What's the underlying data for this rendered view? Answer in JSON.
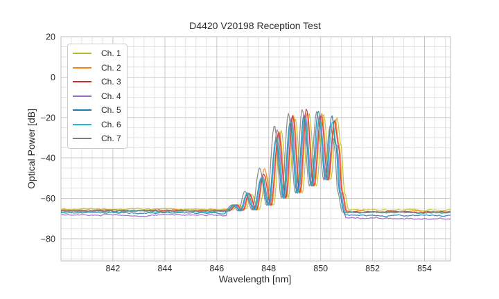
{
  "chart_data": {
    "type": "line",
    "title": "D4420 V20198 Reception Test",
    "xlabel": "Wavelength [nm]",
    "ylabel": "Optical Power [dB]",
    "xlim": [
      840,
      855
    ],
    "ylim": [
      -91,
      20
    ],
    "x_ticks": [
      842,
      844,
      846,
      848,
      850,
      852,
      854
    ],
    "y_ticks": [
      20,
      0,
      -20,
      -40,
      -60,
      -80
    ],
    "x_minor_step_nm": 0.4,
    "y_minor_step_db": 5,
    "grid": "both",
    "legend_position": "upper-left",
    "colors": {
      "background": "#ffffff",
      "grid_major": "#c3c3c3",
      "grid_minor": "#dddddd",
      "frame": "#bdbdbd",
      "text": "#2b2b2b"
    },
    "envelope_points": [
      [
        846.42,
        -66.5,
        null
      ],
      [
        846.74,
        -63.2,
        null
      ],
      [
        846.97,
        -66.3,
        null
      ],
      [
        847.22,
        -58.0,
        0
      ],
      [
        847.5,
        -65.8,
        null
      ],
      [
        847.79,
        -47.5,
        1
      ],
      [
        848.06,
        -63.5,
        null
      ],
      [
        848.36,
        -25.5,
        2
      ],
      [
        848.63,
        -60.0,
        null
      ],
      [
        848.9,
        -19.5,
        3
      ],
      [
        849.17,
        -57.5,
        null
      ],
      [
        849.43,
        -16.5,
        4
      ],
      [
        849.71,
        -54.0,
        null
      ],
      [
        849.99,
        -17.5,
        5
      ],
      [
        850.26,
        -51.0,
        null
      ],
      [
        850.51,
        -20.5,
        6
      ],
      [
        850.67,
        -34.0,
        null
      ],
      [
        850.8,
        -57.0,
        null
      ],
      [
        850.97,
        -66.5,
        null
      ]
    ],
    "series": [
      {
        "name": "Ch. 1",
        "color": "#bcbd22",
        "shift_nm": 0.12,
        "floor_left_db": -65.4,
        "floor_right_db": -65.7,
        "lobe_deltas": [
          0,
          -1.5,
          -1,
          -1,
          -1.5,
          -1,
          0.5
        ]
      },
      {
        "name": "Ch. 2",
        "color": "#ff7f0e",
        "shift_nm": 0.05,
        "floor_left_db": -66.1,
        "floor_right_db": -66.5,
        "lobe_deltas": [
          0,
          2.2,
          -1.5,
          0.5,
          -1.5,
          -0.5,
          -0.5
        ]
      },
      {
        "name": "Ch. 3",
        "color": "#d62728",
        "shift_nm": 0.02,
        "floor_left_db": -66.0,
        "floor_right_db": -66.7,
        "lobe_deltas": [
          0.5,
          -0.5,
          -2,
          0.5,
          0.8,
          -1.5,
          -1
        ]
      },
      {
        "name": "Ch. 4",
        "color": "#9467bd",
        "shift_nm": -0.03,
        "floor_left_db": -68.3,
        "floor_right_db": -70.0,
        "lobe_deltas": [
          0.5,
          -1.5,
          -0.5,
          -0.5,
          -2,
          -2,
          -10
        ]
      },
      {
        "name": "Ch. 5",
        "color": "#1f77b4",
        "shift_nm": -0.08,
        "floor_left_db": -67.2,
        "floor_right_db": -68.6,
        "lobe_deltas": [
          -0.5,
          -2.5,
          -5.5,
          -3,
          -2.5,
          0.8,
          1.5
        ]
      },
      {
        "name": "Ch. 6",
        "color": "#17becf",
        "shift_nm": -0.05,
        "floor_left_db": -66.5,
        "floor_right_db": -67.1,
        "lobe_deltas": [
          0.8,
          -2,
          -4.5,
          -2,
          -3.5,
          -3,
          -1.5
        ]
      },
      {
        "name": "Ch. 7",
        "color": "#7f7f7f",
        "shift_nm": -0.14,
        "floor_left_db": -66.2,
        "floor_right_db": -66.9,
        "lobe_deltas": [
          1.5,
          2.5,
          1.5,
          1.5,
          0.5,
          0.5,
          -3.5
        ]
      }
    ],
    "noise_db": 0.5,
    "sample_step_nm": 0.04,
    "line_width": 1.3,
    "line_opacity": 0.85
  }
}
